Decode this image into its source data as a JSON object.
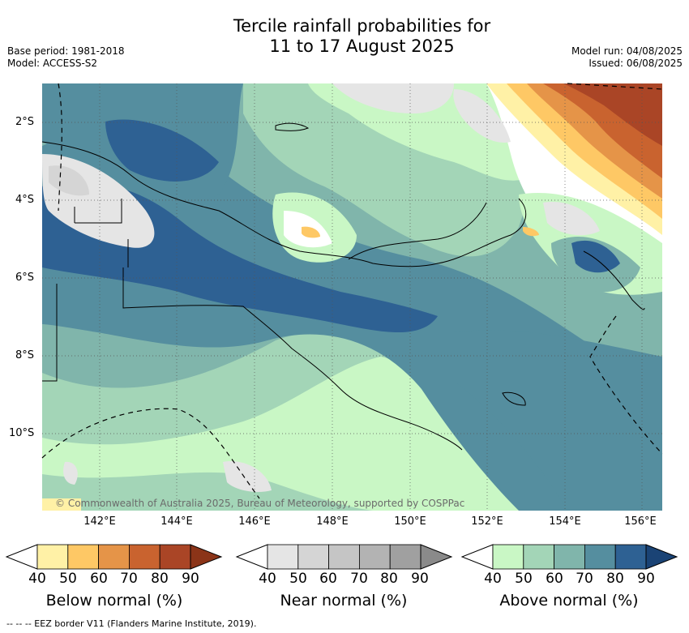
{
  "title_line1": "Tercile rainfall probabilities for",
  "title_line2": "11 to 17 August 2025",
  "base_period": "Base period: 1981-2018",
  "model": "Model: ACCESS-S2",
  "model_run": "Model run: 04/08/2025",
  "issued": "Issued: 06/08/2025",
  "lat_labels": [
    "2°S",
    "4°S",
    "6°S",
    "8°S",
    "10°S"
  ],
  "lon_labels": [
    "142°E",
    "144°E",
    "146°E",
    "148°E",
    "150°E",
    "152°E",
    "154°E",
    "156°E"
  ],
  "copyright": "© Commonwealth of Australia 2025, Bureau of Meteorology, supported by COSPPac",
  "legends": [
    {
      "title": "Below normal (%)",
      "ticks": [
        "40",
        "50",
        "60",
        "70",
        "80",
        "90"
      ],
      "colors": [
        "#fff1a6",
        "#fec865",
        "#e59448",
        "#c9632f",
        "#aa4526",
        "#8b3418"
      ]
    },
    {
      "title": "Near normal (%)",
      "ticks": [
        "40",
        "50",
        "60",
        "70",
        "80",
        "90"
      ],
      "colors": [
        "#e5e5e5",
        "#d5d5d5",
        "#c5c5c5",
        "#b3b3b3",
        "#a0a0a0",
        "#8a8a8a"
      ]
    },
    {
      "title": "Above normal (%)",
      "ticks": [
        "40",
        "50",
        "60",
        "70",
        "80",
        "90"
      ],
      "colors": [
        "#c9f7c5",
        "#a3d5b7",
        "#80b5ab",
        "#558e9f",
        "#2e6193",
        "#1a4375"
      ]
    }
  ],
  "eez_note": "--  --  -- EEZ border V11 (Flanders Marine Institute, 2019)."
}
